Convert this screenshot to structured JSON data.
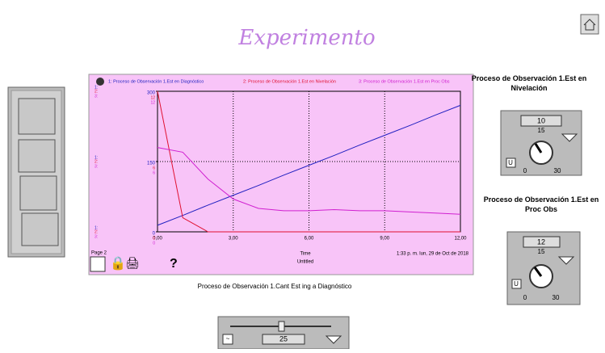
{
  "title": "Experimento",
  "chart_data": {
    "type": "line",
    "series": [
      {
        "name": "1: Proceso de Observación 1.Est en Diagnóstico",
        "color": "#2020c0",
        "values": [
          14,
          35,
          57,
          78,
          99,
          121,
          142,
          163,
          185,
          206,
          227,
          249,
          270
        ]
      },
      {
        "name": "2: Proceso de Observación 1.Est en Nivelación",
        "color": "#e01030",
        "axis": "y2",
        "values": [
          12,
          1.2,
          0,
          0,
          0,
          0,
          0,
          0,
          0,
          0,
          0,
          0,
          0
        ]
      },
      {
        "name": "3: Proceso de Observación 1.Est en Proc Obs",
        "color": "#d020d0",
        "axis": "y2",
        "values": [
          7.2,
          6.8,
          4.5,
          2.8,
          2.0,
          1.8,
          1.8,
          1.9,
          1.8,
          1.8,
          1.7,
          1.6,
          1.5
        ]
      }
    ],
    "x": [
      0,
      1,
      2,
      3,
      4,
      5,
      6,
      7,
      8,
      9,
      10,
      11,
      12
    ],
    "xlim": [
      0,
      12
    ],
    "xticks": [
      {
        "value": 0,
        "label": "0,00"
      },
      {
        "value": 3,
        "label": "3,00"
      },
      {
        "value": 6,
        "label": "6,00"
      },
      {
        "value": 9,
        "label": "9,00"
      },
      {
        "value": 12,
        "label": "12,00"
      }
    ],
    "ylim": [
      0,
      300
    ],
    "yticks": [
      0,
      150,
      300
    ],
    "y2lim": [
      0,
      12
    ],
    "y2ticks": [
      0,
      6,
      12
    ],
    "axis_prefixes": [
      "1:",
      "2:",
      "3:"
    ],
    "xlabel": "Time",
    "subtitle": "Untitled",
    "page": "Page 2",
    "timestamp": "1:33 p. m.   lun, 29 de Oct de 2018",
    "help": "?",
    "grid": true
  },
  "controls": [
    {
      "label": "Proceso de Observación 1.Est en Nivelación",
      "value": "10",
      "mid": "15",
      "min": "0",
      "max": "30",
      "unit": "U"
    },
    {
      "label": "Proceso de Observación 1.Est en Proc Obs",
      "value": "12",
      "mid": "15",
      "min": "0",
      "max": "30",
      "unit": "U"
    }
  ],
  "slider": {
    "label": "Proceso de Observación 1.Cant Est ing a Diagnóstico",
    "value": "25",
    "unit": "~"
  }
}
